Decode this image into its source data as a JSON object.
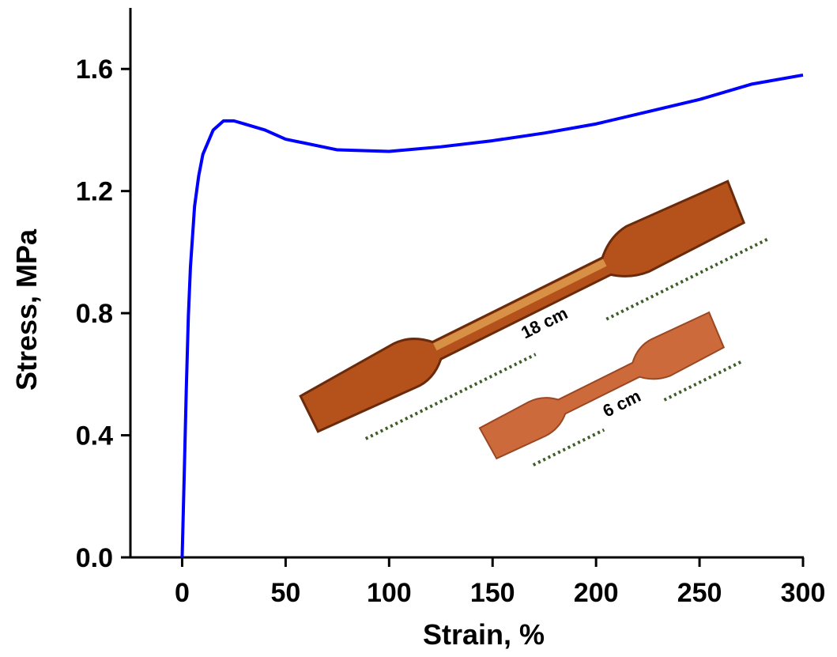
{
  "chart_data": {
    "type": "line",
    "x_label": "Strain, %",
    "y_label": "Stress, MPa",
    "x": [
      0,
      1,
      2,
      3,
      4,
      6,
      8,
      10,
      15,
      20,
      25,
      30,
      40,
      50,
      75,
      100,
      125,
      150,
      175,
      200,
      225,
      250,
      275,
      300
    ],
    "series": [
      {
        "color": "#0000ff",
        "values": [
          0,
          0.27,
          0.55,
          0.79,
          0.95,
          1.15,
          1.25,
          1.32,
          1.4,
          1.43,
          1.43,
          1.42,
          1.4,
          1.37,
          1.335,
          1.33,
          1.345,
          1.365,
          1.39,
          1.42,
          1.46,
          1.5,
          1.55,
          1.58
        ]
      }
    ],
    "xlim": [
      -25,
      300
    ],
    "ylim": [
      0,
      1.8
    ],
    "xticks": [
      0,
      50,
      100,
      150,
      200,
      250,
      300
    ],
    "yticks": [
      {
        "value": 0,
        "label": "0.0"
      },
      0.4,
      0.8,
      1.2,
      1.6
    ],
    "annotations": [
      "18 cm",
      "6 cm"
    ]
  }
}
